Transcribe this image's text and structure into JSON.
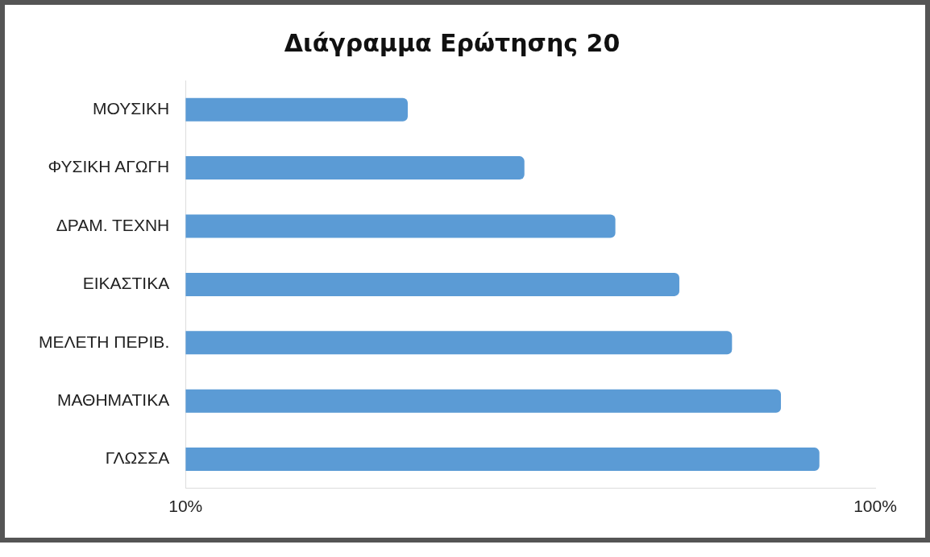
{
  "chart_data": {
    "type": "bar",
    "orientation": "horizontal",
    "title": "Διάγραμμα Ερώτησης 20",
    "categories": [
      "ΜΟΥΣΙΚΗ",
      "ΦΥΣΙΚΗ ΑΓΩΓΗ",
      "ΔΡΑΜ. ΤΕΧΝΗ",
      "ΕΙΚΑΣΤΙΚΑ",
      "ΜΕΛΕΤΗ ΠΕΡΙΒ.",
      "ΜΑΘΗΜΑΤΙΚΑ",
      "ΓΛΩΣΣΑ"
    ],
    "values": [
      21,
      31,
      42,
      52,
      62,
      73,
      83
    ],
    "color": "#5b9bd5",
    "log": "x",
    "xlim": [
      10,
      100
    ],
    "xticks": [
      {
        "value": 10,
        "label": "10%"
      },
      {
        "value": 100,
        "label": "100%"
      }
    ],
    "grid": false
  }
}
